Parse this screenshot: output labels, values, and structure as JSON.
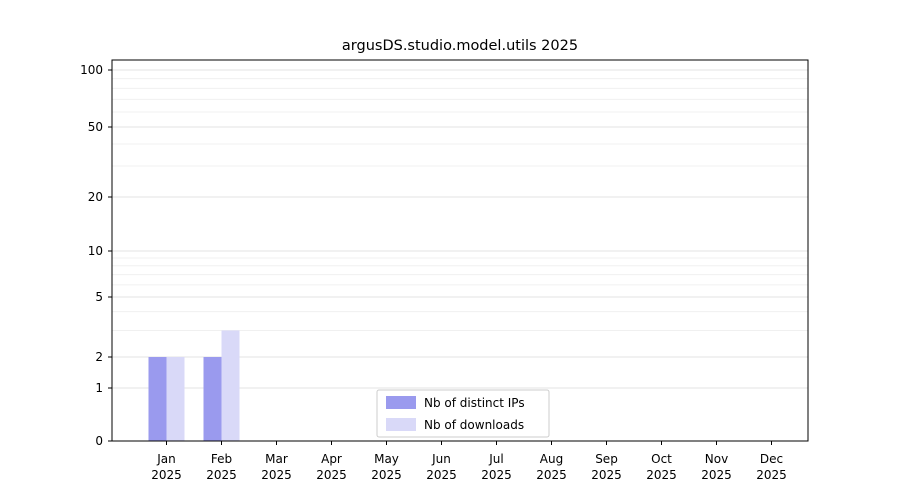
{
  "chart_data": {
    "type": "bar",
    "title": "argusDS.studio.model.utils 2025",
    "categories": [
      "Jan 2025",
      "Feb 2025",
      "Mar 2025",
      "Apr 2025",
      "May 2025",
      "Jun 2025",
      "Jul 2025",
      "Aug 2025",
      "Sep 2025",
      "Oct 2025",
      "Nov 2025",
      "Dec 2025"
    ],
    "series": [
      {
        "name": "Nb of distinct IPs",
        "color": "#9a9aee",
        "values": [
          2,
          2,
          0,
          0,
          0,
          0,
          0,
          0,
          0,
          0,
          0,
          0
        ]
      },
      {
        "name": "Nb of downloads",
        "color": "#d9d9f8",
        "values": [
          2,
          3,
          0,
          0,
          0,
          0,
          0,
          0,
          0,
          0,
          0,
          0
        ]
      }
    ],
    "yscale": "symlog",
    "yticks": [
      0,
      1,
      2,
      5,
      10,
      20,
      50,
      100
    ],
    "ylim": [
      0,
      110
    ],
    "xlabel": "",
    "ylabel": "",
    "grid": true,
    "legend_position": "lower center"
  }
}
